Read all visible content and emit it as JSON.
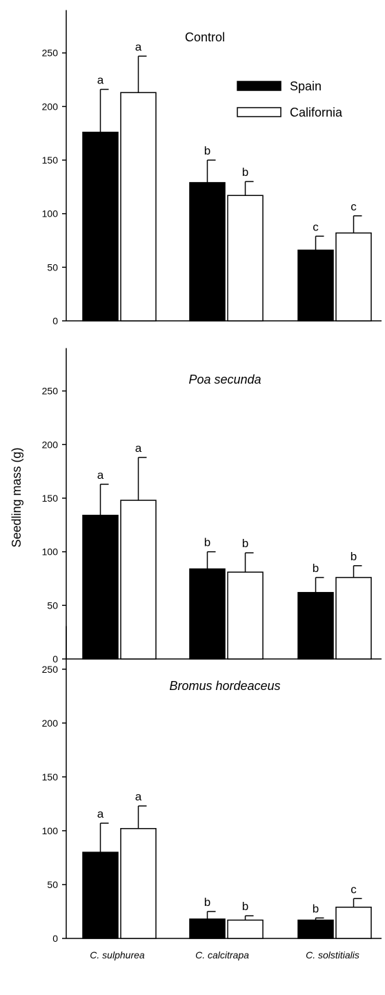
{
  "chart_data": {
    "type": "bar",
    "ylabel": "Seedling mass (g)",
    "ylim": [
      0,
      290
    ],
    "yticks": [
      0,
      50,
      100,
      150,
      200,
      250
    ],
    "categories": [
      "C. sulphurea",
      "C. calcitrapa",
      "C. solstitialis"
    ],
    "legend": {
      "placement": "top-right of first panel",
      "entries": [
        {
          "name": "Spain",
          "color": "#000000"
        },
        {
          "name": "California",
          "color": "#ffffff"
        }
      ]
    },
    "panels": [
      {
        "title": "Control",
        "title_italic": false,
        "series": [
          {
            "name": "Spain",
            "values": [
              176,
              129,
              66
            ],
            "errors": [
              40,
              21,
              13
            ],
            "labels": [
              "a",
              "b",
              "c"
            ]
          },
          {
            "name": "California",
            "values": [
              213,
              117,
              82
            ],
            "errors": [
              34,
              13,
              16
            ],
            "labels": [
              "a",
              "b",
              "c"
            ]
          }
        ]
      },
      {
        "title": "Poa secunda",
        "title_italic": true,
        "series": [
          {
            "name": "Spain",
            "values": [
              134,
              84,
              62
            ],
            "errors": [
              29,
              16,
              14
            ],
            "labels": [
              "a",
              "b",
              "b"
            ]
          },
          {
            "name": "California",
            "values": [
              148,
              81,
              76
            ],
            "errors": [
              40,
              18,
              11
            ],
            "labels": [
              "a",
              "b",
              "b"
            ]
          }
        ]
      },
      {
        "title": "Bromus hordeaceus",
        "title_italic": true,
        "series": [
          {
            "name": "Spain",
            "values": [
              80,
              18,
              17
            ],
            "errors": [
              27,
              7,
              2
            ],
            "labels": [
              "a",
              "b",
              "b"
            ]
          },
          {
            "name": "California",
            "values": [
              102,
              17,
              29
            ],
            "errors": [
              21,
              4,
              8
            ],
            "labels": [
              "a",
              "b",
              "c"
            ]
          }
        ]
      }
    ]
  }
}
